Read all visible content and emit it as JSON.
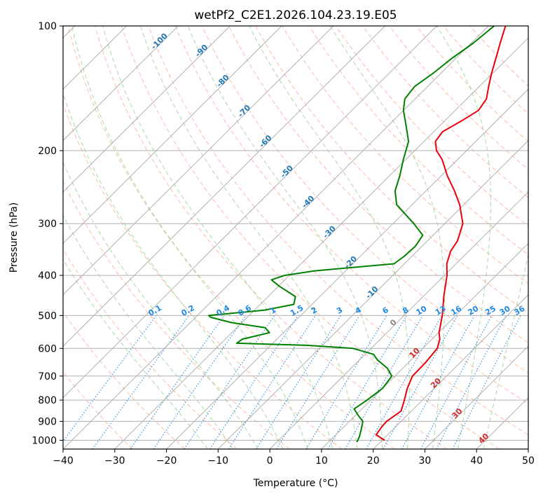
{
  "chart_data": {
    "type": "line",
    "subtype": "skew-t log-p diagram",
    "title": "wetPf2_C2E1.2026.104.23.19.E05",
    "xlabel": "Temperature (°C)",
    "ylabel": "Pressure (hPa)",
    "xlim": [
      -40,
      50
    ],
    "ylim": [
      1050,
      100
    ],
    "x_ticks": [
      "−40",
      "−30",
      "−20",
      "−10",
      "0",
      "10",
      "20",
      "30",
      "40",
      "50"
    ],
    "x_tick_values": [
      -40,
      -30,
      -20,
      -10,
      0,
      10,
      20,
      30,
      40,
      50
    ],
    "y_ticks": [
      "100",
      "200",
      "300",
      "400",
      "500",
      "600",
      "700",
      "800",
      "900",
      "1000"
    ],
    "y_tick_values": [
      100,
      200,
      300,
      400,
      500,
      600,
      700,
      800,
      900,
      1000
    ],
    "grid": true,
    "series": [
      {
        "name": "temperature",
        "color": "#e8000b",
        "points": [
          [
            1000,
            20.5
          ],
          [
            970,
            17.8
          ],
          [
            925,
            17.3
          ],
          [
            900,
            17.2
          ],
          [
            850,
            18.0
          ],
          [
            800,
            16.5
          ],
          [
            750,
            14.8
          ],
          [
            700,
            13.4
          ],
          [
            650,
            13.3
          ],
          [
            600,
            12.8
          ],
          [
            570,
            11.5
          ],
          [
            550,
            10.1
          ],
          [
            500,
            7.4
          ],
          [
            450,
            4.0
          ],
          [
            400,
            0.5
          ],
          [
            375,
            -1.8
          ],
          [
            350,
            -3.5
          ],
          [
            330,
            -4.2
          ],
          [
            300,
            -6.5
          ],
          [
            270,
            -10.8
          ],
          [
            250,
            -14.5
          ],
          [
            230,
            -18.8
          ],
          [
            210,
            -23.0
          ],
          [
            200,
            -25.8
          ],
          [
            190,
            -27.8
          ],
          [
            180,
            -28.3
          ],
          [
            170,
            -26.8
          ],
          [
            160,
            -25.5
          ],
          [
            150,
            -26.2
          ],
          [
            140,
            -28.2
          ],
          [
            130,
            -30.2
          ],
          [
            120,
            -32.2
          ],
          [
            110,
            -34.4
          ],
          [
            100,
            -36.7
          ]
        ]
      },
      {
        "name": "dewpoint",
        "color": "#008000",
        "points": [
          [
            1010,
            15.5
          ],
          [
            980,
            14.9
          ],
          [
            950,
            14.1
          ],
          [
            900,
            12.6
          ],
          [
            870,
            10.5
          ],
          [
            840,
            8.5
          ],
          [
            800,
            9.3
          ],
          [
            750,
            10.0
          ],
          [
            700,
            9.4
          ],
          [
            670,
            7.0
          ],
          [
            640,
            3.5
          ],
          [
            620,
            1.6
          ],
          [
            600,
            -3.5
          ],
          [
            590,
            -13.0
          ],
          [
            583,
            -27.0
          ],
          [
            570,
            -26.7
          ],
          [
            550,
            -22.7
          ],
          [
            535,
            -24.5
          ],
          [
            520,
            -32.0
          ],
          [
            505,
            -37.0
          ],
          [
            500,
            -37.8
          ],
          [
            485,
            -28.0
          ],
          [
            470,
            -23.5
          ],
          [
            450,
            -24.7
          ],
          [
            425,
            -29.8
          ],
          [
            410,
            -32.6
          ],
          [
            400,
            -30.9
          ],
          [
            390,
            -26.0
          ],
          [
            375,
            -12.0
          ],
          [
            360,
            -11.5
          ],
          [
            340,
            -11.3
          ],
          [
            320,
            -12.0
          ],
          [
            300,
            -16.0
          ],
          [
            270,
            -23.0
          ],
          [
            250,
            -26.0
          ],
          [
            230,
            -28.0
          ],
          [
            210,
            -30.5
          ],
          [
            190,
            -33.0
          ],
          [
            170,
            -37.5
          ],
          [
            160,
            -40.0
          ],
          [
            150,
            -42.0
          ],
          [
            140,
            -42.5
          ],
          [
            130,
            -41.5
          ],
          [
            120,
            -40.8
          ],
          [
            110,
            -39.6
          ],
          [
            100,
            -38.9
          ]
        ]
      }
    ],
    "dry_adiabats_theta_K": [
      -30,
      -20,
      -10,
      0,
      10,
      20,
      30,
      40,
      50,
      60,
      70,
      80,
      90,
      100,
      110,
      120,
      130,
      140,
      150,
      160,
      170
    ],
    "moist_adiabats_start_C": [
      -15,
      -10,
      -5,
      0,
      5,
      10,
      15,
      20,
      25,
      30,
      35,
      40
    ],
    "isotherm_labels": [
      {
        "text": "-100",
        "color": "#1f77b4"
      },
      {
        "text": "-90",
        "color": "#1f77b4"
      },
      {
        "text": "-80",
        "color": "#1f77b4"
      },
      {
        "text": "-70",
        "color": "#1f77b4"
      },
      {
        "text": "-60",
        "color": "#1f77b4"
      },
      {
        "text": "-50",
        "color": "#1f77b4"
      },
      {
        "text": "-40",
        "color": "#1f77b4"
      },
      {
        "text": "-30",
        "color": "#1f77b4"
      },
      {
        "text": "-20",
        "color": "#1f77b4"
      },
      {
        "text": "-10",
        "color": "#1f77b4"
      },
      {
        "text": "0",
        "color": "#888888"
      },
      {
        "text": "10",
        "color": "#d62728"
      },
      {
        "text": "20",
        "color": "#d62728"
      },
      {
        "text": "30",
        "color": "#d62728"
      },
      {
        "text": "40",
        "color": "#d62728"
      }
    ],
    "isotherm_label_values": [
      -100,
      -90,
      -80,
      -70,
      -60,
      -50,
      -40,
      -30,
      -20,
      -10,
      0,
      10,
      20,
      30,
      40
    ],
    "mixing_ratio_labels": [
      "0.1",
      "0.2",
      "0.4",
      "0.6",
      "1",
      "1.5",
      "2",
      "3",
      "4",
      "6",
      "8",
      "10",
      "13",
      "16",
      "20",
      "25",
      "30",
      "36"
    ],
    "mixing_ratio_values_gkg": [
      0.1,
      0.2,
      0.4,
      0.6,
      1,
      1.5,
      2,
      3,
      4,
      6,
      8,
      10,
      13,
      16,
      20,
      25,
      30,
      36
    ],
    "colors": {
      "isotherm_grid": "#b0b0b0",
      "dry_adiabat": "#ff8c69",
      "moist_adiabat": "#7ccc7c",
      "mixing_ratio": "#1e88e5",
      "mixing_ratio_label": "#1e88e5"
    }
  }
}
